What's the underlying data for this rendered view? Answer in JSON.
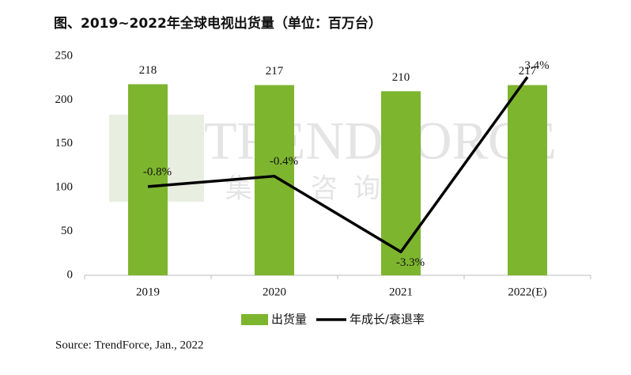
{
  "chart_data": {
    "type": "bar_line",
    "title": "图、2019~2022年全球电视出货量（单位：百万台）",
    "categories": [
      "2019",
      "2020",
      "2021",
      "2022(E)"
    ],
    "series": [
      {
        "name": "出货量",
        "color": "#7db52f",
        "type": "bar",
        "values": [
          218,
          217,
          210,
          217
        ]
      },
      {
        "name": "年成长/衰退率",
        "color": "#000000",
        "type": "line",
        "axis": "y2",
        "values": [
          -0.8,
          -0.4,
          -3.3,
          3.4
        ],
        "value_labels": [
          "-0.8%",
          "-0.4%",
          "-3.3%",
          "3.4%"
        ]
      }
    ],
    "ylim": [
      0,
      250
    ],
    "yticks": [
      0,
      50,
      100,
      150,
      200,
      250
    ],
    "y2lim": [
      -4.2,
      4.2
    ],
    "watermark": [
      "TRENDFORCE",
      "集邦咨询"
    ],
    "source": "Source: TrendForce, Jan., 2022"
  }
}
